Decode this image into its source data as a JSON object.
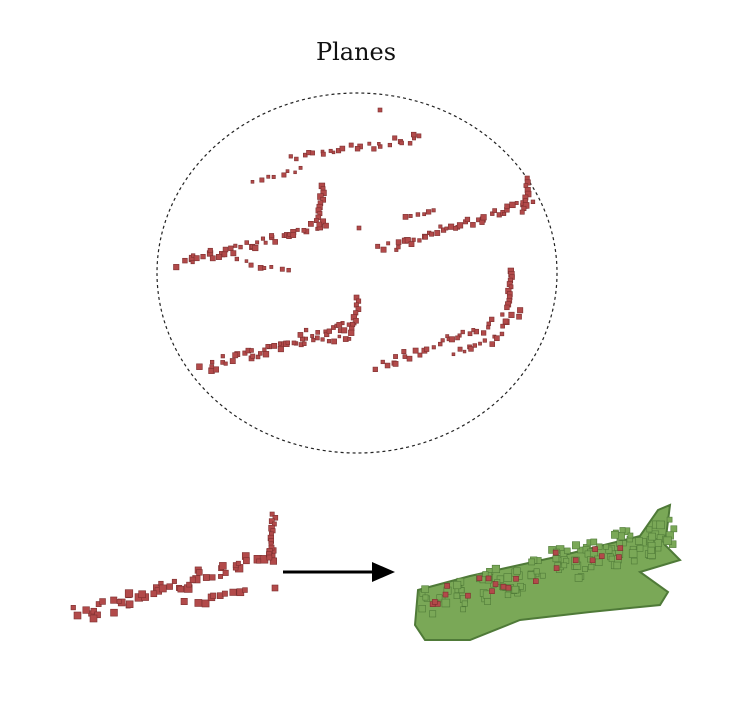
{
  "title": "Planes",
  "colors": {
    "voxel_red": "#b24a4a",
    "voxel_red_dark": "#7e2f2f",
    "mesh_green": "#7aa857",
    "mesh_green_dark": "#4f7a38",
    "outline": "#222222",
    "arrow": "#000000"
  },
  "diagram": {
    "panels": [
      {
        "name": "sparse-voxel-planes",
        "description_visible": false
      },
      {
        "name": "single-sparse-plane"
      },
      {
        "name": "completed-plane"
      }
    ],
    "arrow": {
      "direction": "right"
    }
  }
}
